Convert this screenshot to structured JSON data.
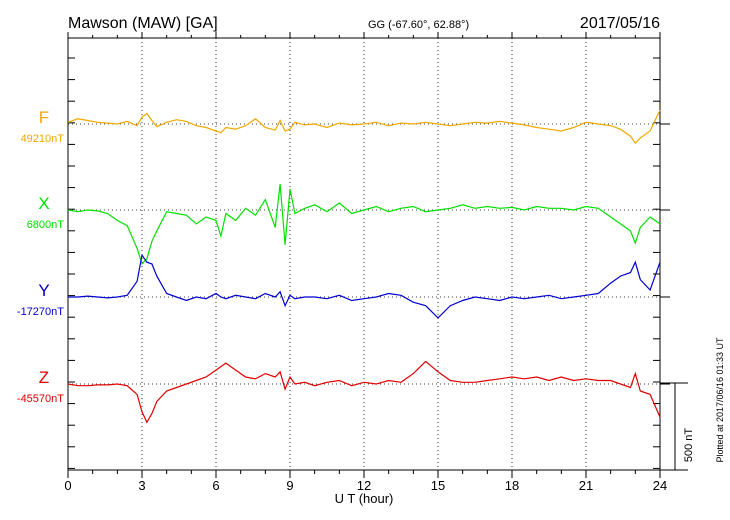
{
  "header": {
    "station": "Mawson (MAW)  [GA]",
    "coords": "GG (-67.60°,  62.88°)",
    "date": "2017/05/16"
  },
  "footer": {
    "plotted": "Plotted at 2017/06/16 01:33 UT",
    "scale_label": "500 nT"
  },
  "colors": {
    "F": "#f0a800",
    "X": "#00e000",
    "Y": "#0000d0",
    "Z": "#e00000",
    "axis": "#000000"
  },
  "chart_data": {
    "type": "line",
    "title": "Mawson (MAW)  [GA]",
    "xlabel": "U T (hour)",
    "ylabel": "",
    "xlim": [
      0,
      24
    ],
    "x_ticks": [
      0,
      3,
      6,
      9,
      12,
      15,
      18,
      21,
      24
    ],
    "x_tick_labels": [
      "0",
      "3",
      "6",
      "9",
      "12",
      "15",
      "18",
      "21",
      "24"
    ],
    "grid": true,
    "scale_bar_nT": 500,
    "series": [
      {
        "name": "F",
        "baseline_label": "49210nT",
        "x": [
          0,
          0.4,
          0.8,
          1.2,
          1.6,
          2.0,
          2.4,
          2.8,
          3.0,
          3.2,
          3.4,
          3.6,
          4.0,
          4.4,
          4.8,
          5.2,
          5.6,
          6.0,
          6.2,
          6.4,
          6.8,
          7.2,
          7.6,
          8.0,
          8.4,
          8.6,
          8.8,
          9.0,
          9.2,
          9.6,
          10.0,
          10.5,
          11.0,
          11.5,
          12.0,
          12.5,
          13.0,
          13.5,
          14.0,
          14.5,
          15.0,
          15.5,
          16.0,
          16.5,
          17.0,
          17.5,
          18.0,
          18.5,
          19.0,
          19.5,
          20.0,
          20.5,
          21.0,
          21.5,
          22.0,
          22.4,
          22.8,
          23.0,
          23.2,
          23.6,
          24.0
        ],
        "values": [
          10,
          30,
          20,
          10,
          5,
          0,
          15,
          -10,
          40,
          60,
          20,
          -15,
          10,
          25,
          15,
          -10,
          -20,
          -40,
          -50,
          -20,
          -30,
          -10,
          30,
          -20,
          -35,
          20,
          -40,
          -30,
          10,
          -5,
          0,
          -20,
          5,
          -5,
          0,
          10,
          -10,
          5,
          0,
          10,
          0,
          -10,
          0,
          10,
          5,
          15,
          5,
          -5,
          -20,
          -30,
          -40,
          -20,
          10,
          0,
          -10,
          -30,
          -70,
          -110,
          -80,
          -40,
          80
        ]
      },
      {
        "name": "X",
        "baseline_label": "6800nT",
        "x": [
          0,
          0.4,
          0.8,
          1.2,
          1.6,
          2.0,
          2.4,
          2.8,
          3.0,
          3.2,
          3.4,
          3.6,
          4.0,
          4.4,
          4.8,
          5.2,
          5.6,
          6.0,
          6.2,
          6.4,
          6.8,
          7.2,
          7.6,
          8.0,
          8.4,
          8.6,
          8.8,
          9.0,
          9.2,
          9.6,
          10.0,
          10.5,
          11.0,
          11.5,
          12.0,
          12.5,
          13.0,
          13.5,
          14.0,
          14.5,
          15.0,
          15.5,
          16.0,
          16.5,
          17.0,
          17.5,
          18.0,
          18.5,
          19.0,
          19.5,
          20.0,
          20.5,
          21.0,
          21.5,
          22.0,
          22.4,
          22.8,
          23.0,
          23.2,
          23.6,
          24.0
        ],
        "values": [
          0,
          -10,
          0,
          -5,
          -20,
          -60,
          -90,
          -220,
          -310,
          -280,
          -180,
          -120,
          -10,
          -20,
          -30,
          -80,
          -40,
          -60,
          -150,
          -20,
          -60,
          10,
          -30,
          60,
          -100,
          150,
          -200,
          120,
          -20,
          10,
          30,
          -10,
          40,
          -20,
          0,
          20,
          -10,
          10,
          20,
          -10,
          0,
          10,
          30,
          10,
          20,
          10,
          15,
          0,
          20,
          10,
          10,
          0,
          20,
          10,
          -40,
          -80,
          -120,
          -190,
          -100,
          -40,
          -80
        ]
      },
      {
        "name": "Y",
        "baseline_label": "-17270nT",
        "x": [
          0,
          0.4,
          0.8,
          1.2,
          1.6,
          2.0,
          2.4,
          2.8,
          3.0,
          3.2,
          3.4,
          3.6,
          4.0,
          4.4,
          4.8,
          5.2,
          5.6,
          6.0,
          6.2,
          6.4,
          6.8,
          7.2,
          7.6,
          8.0,
          8.4,
          8.6,
          8.8,
          9.0,
          9.2,
          9.6,
          10.0,
          10.5,
          11.0,
          11.5,
          12.0,
          12.5,
          13.0,
          13.5,
          14.0,
          14.5,
          15.0,
          15.5,
          16.0,
          16.5,
          17.0,
          17.5,
          18.0,
          18.5,
          19.0,
          19.5,
          20.0,
          20.5,
          21.0,
          21.5,
          22.0,
          22.4,
          22.8,
          23.0,
          23.2,
          23.6,
          24.0
        ],
        "values": [
          0,
          0,
          5,
          0,
          -5,
          0,
          10,
          90,
          240,
          200,
          190,
          120,
          20,
          0,
          -20,
          0,
          -10,
          20,
          0,
          -10,
          10,
          0,
          -10,
          20,
          0,
          30,
          -50,
          10,
          -10,
          0,
          0,
          -10,
          10,
          -20,
          -10,
          0,
          20,
          10,
          -30,
          -50,
          -120,
          -50,
          -20,
          0,
          -10,
          -20,
          0,
          -10,
          0,
          10,
          -10,
          0,
          10,
          20,
          80,
          120,
          140,
          200,
          100,
          40,
          200
        ]
      },
      {
        "name": "Z",
        "baseline_label": "-45570nT",
        "x": [
          0,
          0.4,
          0.8,
          1.2,
          1.6,
          2.0,
          2.4,
          2.8,
          3.0,
          3.2,
          3.4,
          3.6,
          4.0,
          4.4,
          4.8,
          5.2,
          5.6,
          6.0,
          6.2,
          6.4,
          6.8,
          7.2,
          7.6,
          8.0,
          8.4,
          8.6,
          8.8,
          9.0,
          9.2,
          9.6,
          10.0,
          10.5,
          11.0,
          11.5,
          12.0,
          12.5,
          13.0,
          13.5,
          14.0,
          14.5,
          15.0,
          15.5,
          16.0,
          16.5,
          17.0,
          17.5,
          18.0,
          18.5,
          19.0,
          19.5,
          20.0,
          20.5,
          21.0,
          21.5,
          22.0,
          22.4,
          22.8,
          23.0,
          23.2,
          23.6,
          24.0
        ],
        "values": [
          0,
          -10,
          -10,
          -5,
          -5,
          0,
          -10,
          -60,
          -160,
          -220,
          -170,
          -100,
          -40,
          -20,
          0,
          20,
          40,
          80,
          100,
          120,
          80,
          40,
          30,
          60,
          40,
          70,
          -30,
          40,
          0,
          10,
          -10,
          10,
          20,
          -10,
          10,
          0,
          20,
          10,
          60,
          130,
          70,
          20,
          10,
          10,
          20,
          30,
          40,
          30,
          40,
          20,
          40,
          20,
          30,
          20,
          20,
          0,
          -20,
          60,
          -40,
          -60,
          -190
        ]
      }
    ]
  }
}
